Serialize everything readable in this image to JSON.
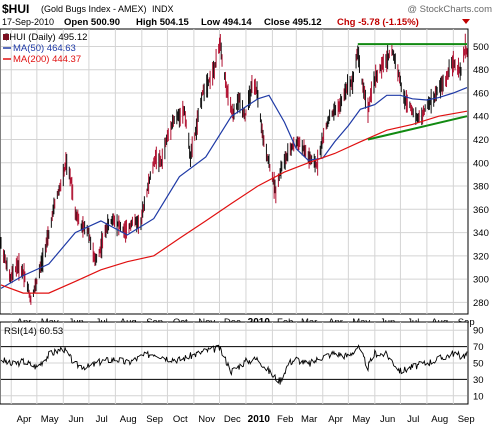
{
  "header": {
    "symbol": "$HUI",
    "name": "(Gold Bugs Index - AMEX)",
    "exchange": "INDX",
    "credit": "@ StockCharts.com",
    "date": "17-Sep-2010",
    "open": "Open 500.90",
    "high": "High 504.15",
    "low": "Low 494.14",
    "close": "Close 495.12",
    "chg": "Chg -5.78 (-1.15%)"
  },
  "legend": {
    "price": "$HUI (Daily) 495.12",
    "ma50": "MA(50) 464.63",
    "ma200": "MA(200) 444.37",
    "rsi": "RSI(14) 60.53"
  },
  "colors": {
    "price": "#7a0f20",
    "ma50": "#1f3aa6",
    "ma200": "#e01010",
    "trend": "#118a11",
    "rsi": "#000000",
    "grid": "#d4d4d4",
    "chg": "#c00000"
  },
  "chart_data": [
    {
      "type": "line",
      "title": "$HUI (Daily) 495.12",
      "x_axis": [
        "Apr",
        "May",
        "Jun",
        "Jul",
        "Aug",
        "Sep",
        "Oct",
        "Nov",
        "Dec",
        "2010",
        "Feb",
        "Mar",
        "Apr",
        "May",
        "Jun",
        "Jul",
        "Aug",
        "Sep"
      ],
      "ylim": [
        270,
        515
      ],
      "y_ticks": [
        280,
        300,
        320,
        340,
        360,
        380,
        400,
        420,
        440,
        460,
        480,
        500
      ],
      "grid": true,
      "legend_position": "top-left",
      "series": [
        {
          "name": "$HUI (Daily) 495.12",
          "style": "ohlc-bars",
          "values": [
            [
              "2009-03-20",
              330
            ],
            [
              "2009-03-31",
              300
            ],
            [
              "2009-04-08",
              312
            ],
            [
              "2009-04-16",
              305
            ],
            [
              "2009-04-24",
              282
            ],
            [
              "2009-05-01",
              298
            ],
            [
              "2009-05-08",
              318
            ],
            [
              "2009-05-15",
              338
            ],
            [
              "2009-05-22",
              365
            ],
            [
              "2009-06-01",
              388
            ],
            [
              "2009-06-04",
              400
            ],
            [
              "2009-06-10",
              385
            ],
            [
              "2009-06-15",
              358
            ],
            [
              "2009-06-22",
              345
            ],
            [
              "2009-06-30",
              342
            ],
            [
              "2009-07-08",
              315
            ],
            [
              "2009-07-14",
              325
            ],
            [
              "2009-07-22",
              345
            ],
            [
              "2009-07-30",
              352
            ],
            [
              "2009-08-07",
              345
            ],
            [
              "2009-08-14",
              340
            ],
            [
              "2009-08-21",
              350
            ],
            [
              "2009-08-31",
              348
            ],
            [
              "2009-09-03",
              362
            ],
            [
              "2009-09-10",
              385
            ],
            [
              "2009-09-17",
              405
            ],
            [
              "2009-09-24",
              400
            ],
            [
              "2009-09-30",
              420
            ],
            [
              "2009-10-07",
              435
            ],
            [
              "2009-10-14",
              440
            ],
            [
              "2009-10-21",
              445
            ],
            [
              "2009-10-28",
              405
            ],
            [
              "2009-11-04",
              430
            ],
            [
              "2009-11-11",
              460
            ],
            [
              "2009-11-18",
              470
            ],
            [
              "2009-11-25",
              480
            ],
            [
              "2009-12-02",
              505
            ],
            [
              "2009-12-04",
              490
            ],
            [
              "2009-12-10",
              460
            ],
            [
              "2009-12-17",
              440
            ],
            [
              "2009-12-24",
              455
            ],
            [
              "2009-12-31",
              440
            ],
            [
              "2010-01-08",
              465
            ],
            [
              "2010-01-14",
              462
            ],
            [
              "2010-01-21",
              420
            ],
            [
              "2010-01-28",
              400
            ],
            [
              "2010-02-05",
              375
            ],
            [
              "2010-02-11",
              395
            ],
            [
              "2010-02-18",
              405
            ],
            [
              "2010-02-25",
              415
            ],
            [
              "2010-03-04",
              418
            ],
            [
              "2010-03-11",
              410
            ],
            [
              "2010-03-18",
              402
            ],
            [
              "2010-03-25",
              398
            ],
            [
              "2010-04-01",
              420
            ],
            [
              "2010-04-08",
              438
            ],
            [
              "2010-04-15",
              445
            ],
            [
              "2010-04-22",
              450
            ],
            [
              "2010-04-29",
              465
            ],
            [
              "2010-05-06",
              470
            ],
            [
              "2010-05-12",
              496
            ],
            [
              "2010-05-17",
              470
            ],
            [
              "2010-05-24",
              445
            ],
            [
              "2010-05-31",
              470
            ],
            [
              "2010-06-07",
              480
            ],
            [
              "2010-06-14",
              488
            ],
            [
              "2010-06-21",
              497
            ],
            [
              "2010-06-28",
              480
            ],
            [
              "2010-07-05",
              455
            ],
            [
              "2010-07-12",
              450
            ],
            [
              "2010-07-19",
              438
            ],
            [
              "2010-07-26",
              440
            ],
            [
              "2010-08-02",
              450
            ],
            [
              "2010-08-09",
              455
            ],
            [
              "2010-08-16",
              465
            ],
            [
              "2010-08-23",
              470
            ],
            [
              "2010-08-30",
              488
            ],
            [
              "2010-09-06",
              480
            ],
            [
              "2010-09-10",
              478
            ],
            [
              "2010-09-15",
              500
            ],
            [
              "2010-09-17",
              495
            ]
          ]
        },
        {
          "name": "MA(50) 464.63",
          "values": [
            [
              "2009-03-20",
              292
            ],
            [
              "2009-04-15",
              303
            ],
            [
              "2009-05-15",
              313
            ],
            [
              "2009-06-15",
              340
            ],
            [
              "2009-07-15",
              350
            ],
            [
              "2009-08-15",
              338
            ],
            [
              "2009-09-15",
              352
            ],
            [
              "2009-10-15",
              388
            ],
            [
              "2009-11-15",
              405
            ],
            [
              "2009-12-15",
              440
            ],
            [
              "2010-01-15",
              455
            ],
            [
              "2010-01-28",
              458
            ],
            [
              "2010-02-15",
              435
            ],
            [
              "2010-03-01",
              412
            ],
            [
              "2010-03-15",
              402
            ],
            [
              "2010-04-01",
              404
            ],
            [
              "2010-04-15",
              418
            ],
            [
              "2010-05-01",
              432
            ],
            [
              "2010-05-15",
              446
            ],
            [
              "2010-06-01",
              450
            ],
            [
              "2010-06-15",
              458
            ],
            [
              "2010-07-01",
              458
            ],
            [
              "2010-07-15",
              455
            ],
            [
              "2010-08-01",
              454
            ],
            [
              "2010-08-15",
              456
            ],
            [
              "2010-09-01",
              460
            ],
            [
              "2010-09-17",
              464.63
            ]
          ]
        },
        {
          "name": "MA(200) 444.37",
          "values": [
            [
              "2009-03-20",
              295
            ],
            [
              "2009-04-15",
              288
            ],
            [
              "2009-05-15",
              288
            ],
            [
              "2009-06-15",
              298
            ],
            [
              "2009-07-15",
              308
            ],
            [
              "2009-08-15",
              315
            ],
            [
              "2009-09-15",
              320
            ],
            [
              "2009-10-15",
              335
            ],
            [
              "2009-11-15",
              350
            ],
            [
              "2009-12-15",
              365
            ],
            [
              "2010-01-15",
              380
            ],
            [
              "2010-02-15",
              392
            ],
            [
              "2010-03-15",
              400
            ],
            [
              "2010-04-15",
              408
            ],
            [
              "2010-05-15",
              418
            ],
            [
              "2010-06-15",
              428
            ],
            [
              "2010-07-15",
              433
            ],
            [
              "2010-08-15",
              440
            ],
            [
              "2010-09-17",
              444.37
            ]
          ]
        },
        {
          "name": "resistance",
          "style": "trendline",
          "values": [
            [
              "2010-05-12",
              502
            ],
            [
              "2010-09-17",
              502
            ]
          ]
        },
        {
          "name": "support",
          "style": "trendline",
          "values": [
            [
              "2010-05-24",
              420
            ],
            [
              "2010-09-17",
              440
            ]
          ]
        }
      ]
    },
    {
      "type": "line",
      "title": "RSI(14) 60.53",
      "x_axis": [
        "Apr",
        "May",
        "Jun",
        "Jul",
        "Aug",
        "Sep",
        "Oct",
        "Nov",
        "Dec",
        "2010",
        "Feb",
        "Mar",
        "Apr",
        "May",
        "Jun",
        "Jul",
        "Aug",
        "Sep"
      ],
      "ylim": [
        0,
        100
      ],
      "y_ticks": [
        10,
        30,
        50,
        70,
        90
      ],
      "reference_lines": [
        30,
        70
      ],
      "grid": true,
      "legend_position": "top-left",
      "series": [
        {
          "name": "RSI(14) 60.53",
          "values": [
            [
              "2009-03-20",
              55
            ],
            [
              "2009-04-01",
              48
            ],
            [
              "2009-04-15",
              52
            ],
            [
              "2009-05-01",
              45
            ],
            [
              "2009-05-15",
              60
            ],
            [
              "2009-06-01",
              68
            ],
            [
              "2009-06-15",
              48
            ],
            [
              "2009-07-01",
              45
            ],
            [
              "2009-07-15",
              52
            ],
            [
              "2009-08-01",
              55
            ],
            [
              "2009-08-15",
              50
            ],
            [
              "2009-09-01",
              58
            ],
            [
              "2009-09-15",
              62
            ],
            [
              "2009-10-01",
              56
            ],
            [
              "2009-10-15",
              54
            ],
            [
              "2009-11-01",
              60
            ],
            [
              "2009-11-15",
              65
            ],
            [
              "2009-12-01",
              68
            ],
            [
              "2009-12-15",
              40
            ],
            [
              "2010-01-01",
              52
            ],
            [
              "2010-01-15",
              55
            ],
            [
              "2010-02-01",
              35
            ],
            [
              "2010-02-10",
              28
            ],
            [
              "2010-02-20",
              50
            ],
            [
              "2010-03-01",
              55
            ],
            [
              "2010-03-15",
              48
            ],
            [
              "2010-04-01",
              58
            ],
            [
              "2010-04-15",
              62
            ],
            [
              "2010-05-01",
              58
            ],
            [
              "2010-05-12",
              70
            ],
            [
              "2010-05-24",
              45
            ],
            [
              "2010-06-01",
              62
            ],
            [
              "2010-06-15",
              60
            ],
            [
              "2010-07-01",
              40
            ],
            [
              "2010-07-15",
              45
            ],
            [
              "2010-08-01",
              50
            ],
            [
              "2010-08-15",
              55
            ],
            [
              "2010-09-01",
              62
            ],
            [
              "2010-09-10",
              58
            ],
            [
              "2010-09-17",
              60.53
            ]
          ]
        }
      ]
    }
  ]
}
